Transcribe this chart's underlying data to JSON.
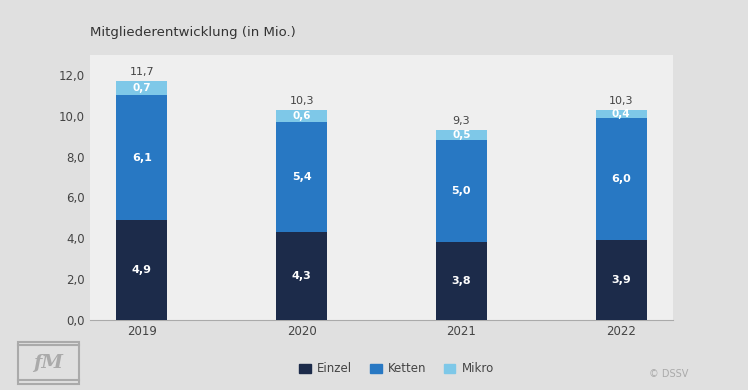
{
  "title": "Mitgliederentwicklung (in Mio.)",
  "years": [
    "2019",
    "2020",
    "2021",
    "2022"
  ],
  "einzel": [
    4.9,
    4.3,
    3.8,
    3.9
  ],
  "ketten": [
    6.1,
    5.4,
    5.0,
    6.0
  ],
  "mikro": [
    0.7,
    0.6,
    0.5,
    0.4
  ],
  "totals": [
    11.7,
    10.3,
    9.3,
    10.3
  ],
  "color_einzel": "#1c2b4a",
  "color_ketten": "#2878c3",
  "color_mikro": "#7ec8e8",
  "background_outer": "#e0e0e0",
  "background_plot": "#efefef",
  "ylim": [
    0,
    13
  ],
  "yticks": [
    0,
    2.0,
    4.0,
    6.0,
    8.0,
    10.0,
    12.0
  ],
  "bar_width": 0.32,
  "legend_labels": [
    "Einzel",
    "Ketten",
    "Mikro"
  ],
  "watermark": "© DSSV",
  "title_fontsize": 9.5,
  "label_fontsize": 8,
  "tick_fontsize": 8.5,
  "legend_fontsize": 8.5
}
